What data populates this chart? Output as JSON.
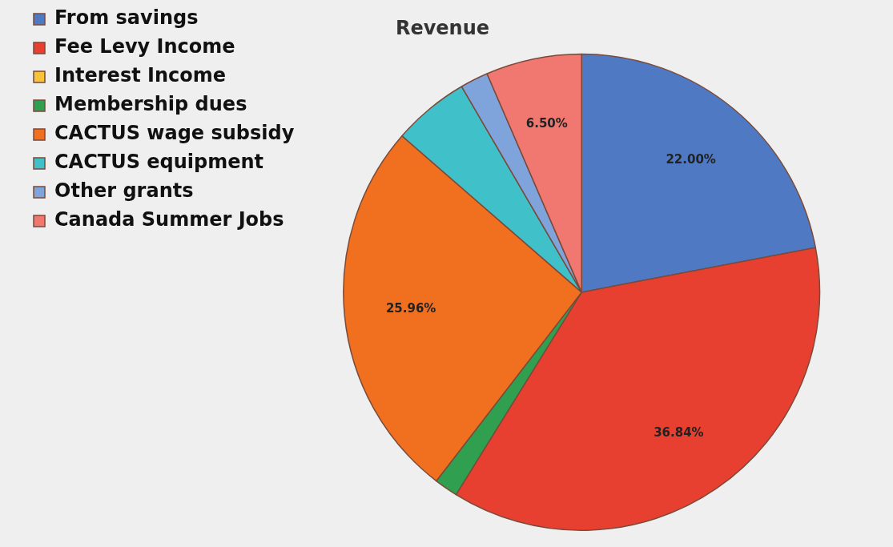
{
  "chart_data": {
    "type": "pie",
    "title": "Revenue",
    "categories": [
      "From savings",
      "Fee Levy Income",
      "Interest Income",
      "Membership dues",
      "CACTUS wage subsidy",
      "CACTUS equipment",
      "Other grants",
      "Canada Summer Jobs"
    ],
    "values": [
      22.0,
      36.84,
      0,
      1.6,
      25.96,
      5.2,
      1.9,
      6.5
    ],
    "colors": [
      "#4f7ac3",
      "#e84030",
      "#f6c33a",
      "#30a050",
      "#f07020",
      "#40c0c8",
      "#7fa4dc",
      "#f07870"
    ],
    "value_labels": [
      "22.00%",
      "36.84%",
      null,
      null,
      "25.96%",
      null,
      null,
      "6.50%"
    ],
    "legend": "top left"
  }
}
